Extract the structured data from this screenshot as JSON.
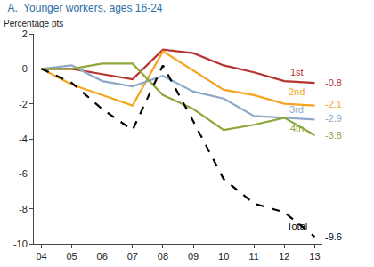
{
  "chart_data": {
    "type": "line",
    "title": "A.  Younger workers, ages 16-24",
    "y_label": "Percentage pts",
    "categories": [
      "04",
      "05",
      "06",
      "07",
      "08",
      "09",
      "10",
      "11",
      "12",
      "13"
    ],
    "series": [
      {
        "name": "1st",
        "color": "#b5332e",
        "line_style": "solid",
        "values": [
          0,
          0,
          -0.3,
          -0.6,
          1.1,
          0.9,
          0.2,
          -0.2,
          -0.7,
          -0.8
        ]
      },
      {
        "name": "2nd",
        "color": "#f4a41f",
        "line_style": "solid",
        "values": [
          0,
          -0.9,
          -1.5,
          -2.1,
          1.0,
          -0.1,
          -1.2,
          -1.5,
          -2.0,
          -2.1
        ]
      },
      {
        "name": "3rd",
        "color": "#8ea9c8",
        "line_style": "solid",
        "values": [
          0,
          0.2,
          -0.7,
          -1.0,
          -0.4,
          -1.3,
          -1.7,
          -2.7,
          -2.8,
          -2.9
        ]
      },
      {
        "name": "4th",
        "color": "#8da83a",
        "line_style": "solid",
        "values": [
          0,
          0,
          0.3,
          0.3,
          -1.5,
          -2.3,
          -3.5,
          -3.2,
          -2.8,
          -3.8
        ]
      },
      {
        "name": "Total",
        "color": "#000000",
        "line_style": "dash",
        "values": [
          0,
          -0.8,
          -2.3,
          -3.5,
          0.2,
          -3.0,
          -6.3,
          -7.7,
          -8.2,
          -9.6
        ]
      }
    ],
    "annotations": [
      {
        "text": "1st",
        "x": "12",
        "y": -0.2,
        "color": "#b5332e"
      },
      {
        "text": "2nd",
        "x": "12",
        "y": -1.3,
        "color": "#f4a41f"
      },
      {
        "text": "3rd",
        "x": "12",
        "y": -2.3,
        "color": "#8ea9c8"
      },
      {
        "text": "4th",
        "x": "12",
        "y": -3.4,
        "color": "#8da83a"
      },
      {
        "text": "Total",
        "x": "12",
        "y": -9.0,
        "color": "#000000"
      },
      {
        "text": "-0.8",
        "x": "13",
        "y": -0.8,
        "color": "#b5332e"
      },
      {
        "text": "-2.1",
        "x": "13",
        "y": -2.0,
        "color": "#f4a41f"
      },
      {
        "text": "-2.9",
        "x": "13",
        "y": -2.85,
        "color": "#8ea9c8"
      },
      {
        "text": "-3.8",
        "x": "13",
        "y": -3.8,
        "color": "#8da83a"
      },
      {
        "text": "-9.6",
        "x": "13",
        "y": -9.6,
        "color": "#000000"
      }
    ],
    "ylim": [
      -10,
      2
    ],
    "yticks": [
      -10,
      -8,
      -6,
      -4,
      -2,
      0,
      2
    ],
    "grid": false,
    "legend": "none"
  }
}
